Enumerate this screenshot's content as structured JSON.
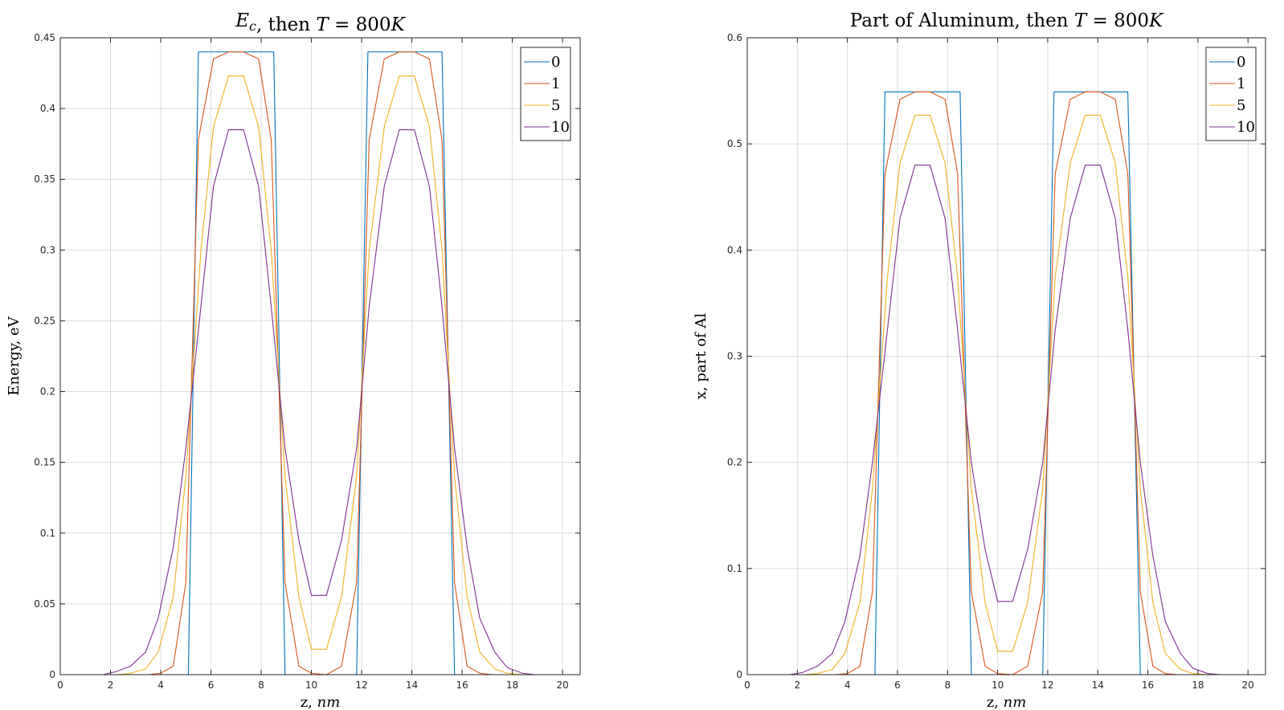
{
  "chart_data": [
    {
      "type": "line",
      "title": "E_c, then T = 800K",
      "xlabel": "z, nm",
      "ylabel": "Energy, eV",
      "xlim": [
        0,
        20.7
      ],
      "ylim": [
        0,
        0.45
      ],
      "xticks": [
        0,
        2,
        4,
        6,
        8,
        10,
        12,
        14,
        16,
        18,
        20
      ],
      "yticks": [
        0,
        0.05,
        0.1,
        0.15,
        0.2,
        0.25,
        0.3,
        0.35,
        0.4,
        0.45
      ],
      "grid": true,
      "legend": "top-right",
      "series": [
        {
          "name": "0",
          "color": "#0072BD",
          "x": [
            0,
            5.1,
            5.5,
            8.5,
            8.95,
            11.8,
            12.25,
            15.2,
            15.7,
            20.7
          ],
          "y": [
            0,
            0,
            0.44,
            0.44,
            0,
            0,
            0.44,
            0.44,
            0,
            0
          ]
        },
        {
          "name": "1",
          "color": "#D95319",
          "x": [
            0,
            3.5,
            4.0,
            4.5,
            5.0,
            5.5,
            6.1,
            6.7,
            7.3,
            7.9,
            8.4,
            8.95,
            9.5,
            10.0,
            10.6,
            11.2,
            11.8,
            12.3,
            12.9,
            13.5,
            14.1,
            14.7,
            15.2,
            15.7,
            16.2,
            16.7,
            17.2,
            20.7
          ],
          "y": [
            0,
            0,
            0.001,
            0.006,
            0.065,
            0.378,
            0.435,
            0.44,
            0.44,
            0.435,
            0.378,
            0.065,
            0.006,
            0.001,
            0,
            0.006,
            0.065,
            0.378,
            0.435,
            0.44,
            0.44,
            0.435,
            0.378,
            0.065,
            0.006,
            0.001,
            0,
            0
          ]
        },
        {
          "name": "5",
          "color": "#EDB120",
          "x": [
            0,
            2.3,
            2.8,
            3.4,
            3.9,
            4.5,
            5.0,
            5.6,
            6.1,
            6.7,
            7.3,
            7.9,
            8.4,
            8.95,
            9.5,
            10.0,
            10.6,
            11.2,
            11.8,
            12.3,
            12.9,
            13.5,
            14.1,
            14.7,
            15.2,
            15.7,
            16.2,
            16.7,
            17.3,
            17.8,
            18.4,
            20.7
          ],
          "y": [
            0,
            0,
            0.001,
            0.004,
            0.016,
            0.055,
            0.14,
            0.3,
            0.387,
            0.423,
            0.423,
            0.387,
            0.3,
            0.14,
            0.055,
            0.018,
            0.018,
            0.055,
            0.14,
            0.3,
            0.387,
            0.423,
            0.423,
            0.387,
            0.3,
            0.14,
            0.055,
            0.016,
            0.004,
            0.001,
            0,
            0
          ]
        },
        {
          "name": "10",
          "color": "#7E2F8E",
          "x": [
            0,
            1.7,
            2.2,
            2.8,
            3.4,
            3.9,
            4.5,
            5.0,
            5.6,
            6.1,
            6.7,
            7.3,
            7.9,
            8.4,
            8.95,
            9.5,
            10.0,
            10.6,
            11.2,
            11.8,
            12.3,
            12.9,
            13.5,
            14.1,
            14.7,
            15.2,
            15.7,
            16.2,
            16.7,
            17.3,
            17.8,
            18.4,
            18.9,
            20.7
          ],
          "y": [
            0,
            0,
            0.002,
            0.006,
            0.016,
            0.04,
            0.09,
            0.16,
            0.26,
            0.345,
            0.385,
            0.385,
            0.345,
            0.26,
            0.16,
            0.095,
            0.056,
            0.056,
            0.095,
            0.16,
            0.26,
            0.345,
            0.385,
            0.385,
            0.345,
            0.26,
            0.16,
            0.09,
            0.04,
            0.016,
            0.005,
            0.001,
            0,
            0
          ]
        }
      ]
    },
    {
      "type": "line",
      "title": "Part of Aluminum, then T = 800K",
      "xlabel": "z, nm",
      "ylabel": "x, part of Al",
      "xlim": [
        0,
        20.7
      ],
      "ylim": [
        0,
        0.6
      ],
      "xticks": [
        0,
        2,
        4,
        6,
        8,
        10,
        12,
        14,
        16,
        18,
        20
      ],
      "yticks": [
        0,
        0.1,
        0.2,
        0.3,
        0.4,
        0.5,
        0.6
      ],
      "grid": true,
      "legend": "top-right",
      "series": [
        {
          "name": "0",
          "color": "#0072BD",
          "x": [
            0,
            5.1,
            5.5,
            8.5,
            8.95,
            11.8,
            12.25,
            15.2,
            15.7,
            20.7
          ],
          "y": [
            0,
            0,
            0.549,
            0.549,
            0,
            0,
            0.549,
            0.549,
            0,
            0
          ]
        },
        {
          "name": "1",
          "color": "#D95319",
          "x": [
            0,
            3.5,
            4.0,
            4.5,
            5.0,
            5.5,
            6.1,
            6.7,
            7.3,
            7.9,
            8.4,
            8.95,
            9.5,
            10.0,
            10.6,
            11.2,
            11.8,
            12.3,
            12.9,
            13.5,
            14.1,
            14.7,
            15.2,
            15.7,
            16.2,
            16.7,
            17.2,
            20.7
          ],
          "y": [
            0,
            0,
            0.001,
            0.008,
            0.078,
            0.472,
            0.542,
            0.549,
            0.549,
            0.542,
            0.472,
            0.078,
            0.008,
            0.001,
            0,
            0.008,
            0.078,
            0.472,
            0.542,
            0.549,
            0.549,
            0.542,
            0.472,
            0.078,
            0.008,
            0.001,
            0,
            0
          ]
        },
        {
          "name": "5",
          "color": "#EDB120",
          "x": [
            0,
            2.3,
            2.8,
            3.4,
            3.9,
            4.5,
            5.0,
            5.6,
            6.1,
            6.7,
            7.3,
            7.9,
            8.4,
            8.95,
            9.5,
            10.0,
            10.6,
            11.2,
            11.8,
            12.3,
            12.9,
            13.5,
            14.1,
            14.7,
            15.2,
            15.7,
            16.2,
            16.7,
            17.3,
            17.8,
            18.4,
            20.7
          ],
          "y": [
            0,
            0,
            0.001,
            0.005,
            0.02,
            0.068,
            0.175,
            0.375,
            0.482,
            0.527,
            0.527,
            0.482,
            0.375,
            0.175,
            0.068,
            0.022,
            0.022,
            0.068,
            0.175,
            0.375,
            0.482,
            0.527,
            0.527,
            0.482,
            0.375,
            0.175,
            0.068,
            0.02,
            0.005,
            0.001,
            0,
            0
          ]
        },
        {
          "name": "10",
          "color": "#7E2F8E",
          "x": [
            0,
            1.7,
            2.2,
            2.8,
            3.4,
            3.9,
            4.5,
            5.0,
            5.6,
            6.1,
            6.7,
            7.3,
            7.9,
            8.4,
            8.95,
            9.5,
            10.0,
            10.6,
            11.2,
            11.8,
            12.3,
            12.9,
            13.5,
            14.1,
            14.7,
            15.2,
            15.7,
            16.2,
            16.7,
            17.3,
            17.8,
            18.4,
            18.9,
            20.7
          ],
          "y": [
            0,
            0,
            0.002,
            0.008,
            0.02,
            0.05,
            0.112,
            0.2,
            0.325,
            0.43,
            0.48,
            0.48,
            0.43,
            0.325,
            0.2,
            0.118,
            0.069,
            0.069,
            0.118,
            0.2,
            0.325,
            0.43,
            0.48,
            0.48,
            0.43,
            0.325,
            0.2,
            0.112,
            0.05,
            0.02,
            0.006,
            0.001,
            0,
            0
          ]
        }
      ]
    }
  ]
}
